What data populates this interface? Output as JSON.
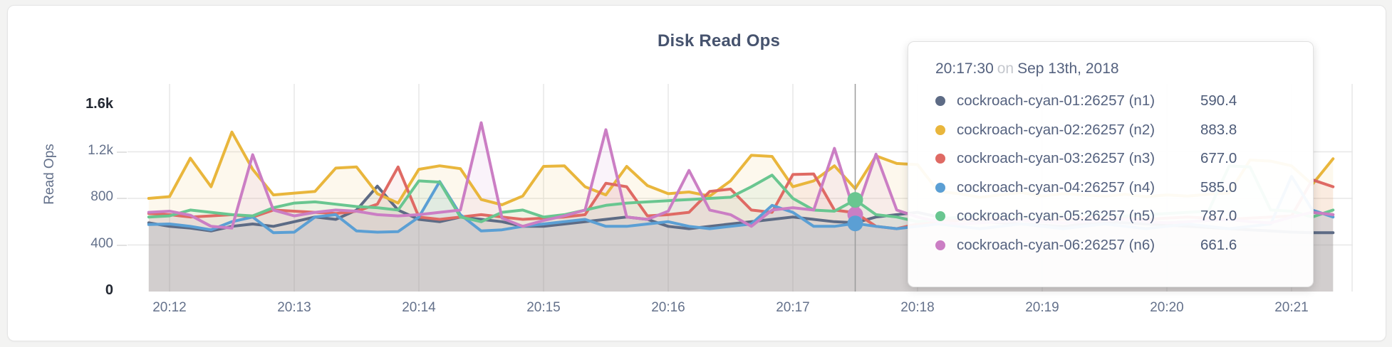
{
  "chart_data": {
    "type": "area",
    "title": "Disk Read Ops",
    "xlabel": "",
    "ylabel": "Read Ops",
    "ylim": [
      0,
      1600
    ],
    "grid": true,
    "legend_position": "tooltip-only",
    "x_start_time": "20:11:50",
    "x_interval_seconds": 10,
    "xticks": [
      {
        "label": "20:12",
        "t": 10
      },
      {
        "label": "20:13",
        "t": 70
      },
      {
        "label": "20:14",
        "t": 130
      },
      {
        "label": "20:15",
        "t": 190
      },
      {
        "label": "20:16",
        "t": 250
      },
      {
        "label": "20:17",
        "t": 310
      },
      {
        "label": "20:18",
        "t": 370
      },
      {
        "label": "20:19",
        "t": 430
      },
      {
        "label": "20:20",
        "t": 490
      },
      {
        "label": "20:21",
        "t": 550
      }
    ],
    "yticks": [
      {
        "label": "1.6k",
        "value": 1600,
        "emphasis": true
      },
      {
        "label": "1.2k",
        "value": 1200,
        "emphasis": false
      },
      {
        "label": "800",
        "value": 800,
        "emphasis": false
      },
      {
        "label": "400",
        "value": 400,
        "emphasis": false
      },
      {
        "label": "0",
        "value": 0,
        "emphasis": true
      }
    ],
    "series": [
      {
        "name": "cockroach-cyan-01:26257 (n1)",
        "node": "n1",
        "color": "#5d6b85",
        "values": [
          590,
          560,
          545,
          520,
          560,
          580,
          560,
          600,
          640,
          620,
          700,
          905,
          700,
          620,
          600,
          640,
          620,
          600,
          560,
          560,
          580,
          600,
          620,
          640,
          620,
          560,
          540,
          560,
          580,
          600,
          620,
          640,
          620,
          600,
          590.4,
          640,
          660,
          680,
          640,
          620,
          600,
          590,
          580,
          570,
          560,
          580,
          600,
          590,
          580,
          570,
          560,
          550,
          540,
          530,
          520,
          510,
          505,
          505
        ]
      },
      {
        "name": "cockroach-cyan-02:26257 (n2)",
        "node": "n2",
        "color": "#e9b63c",
        "values": [
          800,
          815,
          1145,
          900,
          1370,
          1050,
          830,
          845,
          860,
          1060,
          1070,
          840,
          760,
          1050,
          1080,
          1055,
          790,
          745,
          820,
          1075,
          1080,
          900,
          830,
          1075,
          910,
          840,
          855,
          820,
          950,
          1170,
          1160,
          900,
          950,
          1080,
          883.8,
          1165,
          1100,
          1090,
          860,
          840,
          810,
          830,
          850,
          820,
          840,
          830,
          820,
          835,
          815,
          830,
          820,
          835,
          845,
          1130,
          1120,
          1080,
          920,
          1140
        ]
      },
      {
        "name": "cockroach-cyan-03:26257 (n3)",
        "node": "n3",
        "color": "#df6a64",
        "values": [
          670,
          660,
          640,
          650,
          660,
          640,
          700,
          690,
          680,
          670,
          690,
          750,
          1070,
          640,
          620,
          640,
          660,
          640,
          620,
          630,
          640,
          660,
          930,
          900,
          650,
          660,
          680,
          860,
          880,
          700,
          680,
          1005,
          1010,
          700,
          677,
          560,
          540,
          580,
          600,
          610,
          620,
          630,
          620,
          610,
          620,
          630,
          640,
          630,
          620,
          630,
          640,
          630,
          620,
          630,
          640,
          650,
          960,
          900
        ]
      },
      {
        "name": "cockroach-cyan-04:26257 (n4)",
        "node": "n4",
        "color": "#5b9fd4",
        "values": [
          575,
          580,
          560,
          530,
          600,
          640,
          505,
          510,
          640,
          660,
          520,
          510,
          515,
          640,
          945,
          660,
          520,
          530,
          560,
          580,
          600,
          620,
          560,
          560,
          580,
          600,
          560,
          540,
          560,
          580,
          740,
          680,
          560,
          560,
          585,
          560,
          540,
          560,
          580,
          560,
          540,
          560,
          580,
          560,
          540,
          560,
          580,
          560,
          540,
          560,
          580,
          560,
          540,
          560,
          580,
          990,
          700,
          640
        ]
      },
      {
        "name": "cockroach-cyan-05:26257 (n5)",
        "node": "n5",
        "color": "#69c690",
        "values": [
          640,
          650,
          700,
          680,
          660,
          650,
          720,
          760,
          770,
          750,
          730,
          720,
          700,
          950,
          940,
          640,
          600,
          680,
          700,
          640,
          660,
          700,
          740,
          760,
          770,
          780,
          790,
          800,
          810,
          900,
          1000,
          800,
          700,
          690,
          787,
          660,
          640,
          600,
          620,
          640,
          660,
          650,
          640,
          650,
          660,
          670,
          660,
          650,
          660,
          670,
          680,
          690,
          1080,
          1070,
          700,
          690,
          640,
          700
        ]
      },
      {
        "name": "cockroach-cyan-06:26257 (n6)",
        "node": "n6",
        "color": "#cb7ec4",
        "values": [
          680,
          690,
          655,
          560,
          545,
          1175,
          700,
          650,
          680,
          700,
          690,
          660,
          650,
          660,
          680,
          700,
          1450,
          630,
          560,
          610,
          650,
          700,
          1390,
          640,
          620,
          690,
          1040,
          700,
          660,
          560,
          700,
          720,
          700,
          1230,
          661.6,
          1180,
          700,
          640,
          600,
          580,
          590,
          600,
          610,
          600,
          590,
          600,
          610,
          620,
          600,
          590,
          600,
          610,
          620,
          600,
          590,
          640,
          680,
          660
        ]
      }
    ],
    "crosshair": {
      "index": 34,
      "color": "#9b9b9b",
      "highlight_nodes": [
        "n6",
        "n5",
        "n4"
      ],
      "dot_radius": 11
    },
    "style": {
      "gridline_color": "#e7e7e7",
      "area_opacity": 0.09,
      "line_width": 4
    }
  },
  "tooltip": {
    "time": "20:17:30",
    "connector": "on",
    "date": "Sep 13th, 2018",
    "rows": [
      {
        "name": "cockroach-cyan-01:26257 (n1)",
        "value": "590.4",
        "color": "#5d6b85"
      },
      {
        "name": "cockroach-cyan-02:26257 (n2)",
        "value": "883.8",
        "color": "#e9b63c"
      },
      {
        "name": "cockroach-cyan-03:26257 (n3)",
        "value": "677.0",
        "color": "#df6a64"
      },
      {
        "name": "cockroach-cyan-04:26257 (n4)",
        "value": "585.0",
        "color": "#5b9fd4"
      },
      {
        "name": "cockroach-cyan-05:26257 (n5)",
        "value": "787.0",
        "color": "#69c690"
      },
      {
        "name": "cockroach-cyan-06:26257 (n6)",
        "value": "661.6",
        "color": "#cb7ec4"
      }
    ]
  }
}
